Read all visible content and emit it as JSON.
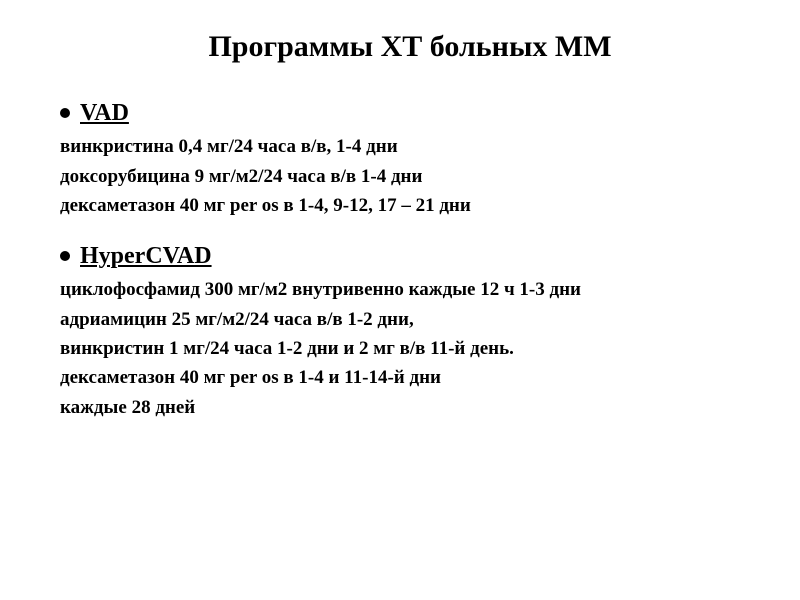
{
  "title": "Программы ХТ больных ММ",
  "protocols": [
    {
      "name": "VAD",
      "lines": [
        "винкристина 0,4 мг/24 часа в/в, 1-4 дни",
        "доксорубицина 9 мг/м2/24 часа в/в 1-4 дни",
        "дексаметазон 40 мг per os в 1-4, 9-12, 17 – 21 дни"
      ]
    },
    {
      "name": "HyperCVAD",
      "lines": [
        "циклофосфамид 300 мг/м2 внутривенно каждые 12 ч 1-3 дни",
        "адриамицин 25 мг/м2/24 часа в/в 1-2 дни,",
        "винкристин 1 мг/24 часа 1-2 дни и 2 мг в/в 11-й день.",
        "дексаметазон 40 мг per os в 1-4 и 11-14-й дни",
        "каждые 28 дней"
      ]
    }
  ],
  "style": {
    "background_color": "#ffffff",
    "text_color": "#000000",
    "bullet_color": "#000000",
    "title_fontsize": 30,
    "protocol_fontsize": 24,
    "line_fontsize": 19,
    "font_family": "Times New Roman"
  }
}
